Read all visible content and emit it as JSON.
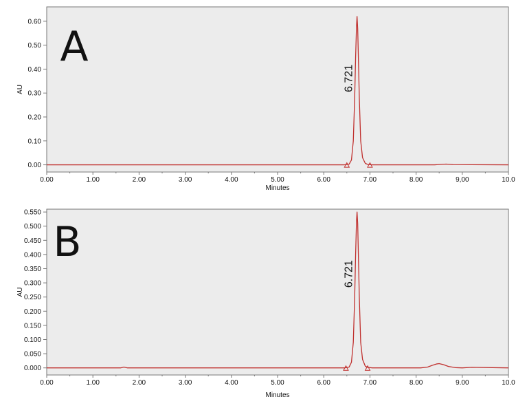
{
  "colors": {
    "trace": "#c0302e",
    "plot_background": "#ececec",
    "axis": "#777777",
    "text": "#111111"
  },
  "chart_data": [
    {
      "type": "line",
      "panel_letter": "A",
      "xlabel": "Minutes",
      "ylabel": "AU",
      "xlim": [
        0,
        10
      ],
      "ylim": [
        -0.03,
        0.66
      ],
      "x_ticks": [
        0,
        1,
        2,
        3,
        4,
        5,
        6,
        7,
        8,
        9,
        10
      ],
      "x_tick_labels": [
        "0.00",
        "1.00",
        "2.00",
        "3.00",
        "4.00",
        "5.00",
        "6.00",
        "7.00",
        "8.00",
        "9,00",
        "10.0"
      ],
      "y_ticks": [
        0,
        0.1,
        0.2,
        0.3,
        0.4,
        0.5,
        0.6
      ],
      "y_tick_labels": [
        "0.00",
        "0.10",
        "0.20",
        "0.30",
        "0.40",
        "0.50",
        "0.60"
      ],
      "grid": false,
      "series": [
        {
          "x": [
            0,
            6.45,
            6.55,
            6.6,
            6.64,
            6.67,
            6.69,
            6.71,
            6.721,
            6.735,
            6.75,
            6.77,
            6.8,
            6.84,
            6.9,
            6.95,
            7.05,
            8.4,
            8.55,
            8.65,
            8.8,
            10
          ],
          "y": [
            0,
            0,
            0.003,
            0.02,
            0.1,
            0.28,
            0.45,
            0.58,
            0.62,
            0.57,
            0.45,
            0.28,
            0.1,
            0.03,
            0.006,
            0.002,
            0,
            0,
            0.002,
            0.003,
            0.001,
            0
          ]
        }
      ],
      "annotations": [
        {
          "text": "6.721",
          "x": 6.721
        }
      ],
      "markers": [
        {
          "x": 6.5,
          "y": 0
        },
        {
          "x": 7.0,
          "y": 0
        }
      ]
    },
    {
      "type": "line",
      "panel_letter": "B",
      "xlabel": "Minutes",
      "ylabel": "AU",
      "xlim": [
        0,
        10
      ],
      "ylim": [
        -0.025,
        0.56
      ],
      "x_ticks": [
        0,
        1,
        2,
        3,
        4,
        5,
        6,
        7,
        8,
        9,
        10
      ],
      "x_tick_labels": [
        "0.00",
        "1.00",
        "2.00",
        "3.00",
        "4.00",
        "5.00",
        "6.00",
        "7.00",
        "8.00",
        "9.00",
        "10.0"
      ],
      "y_ticks": [
        0,
        0.05,
        0.1,
        0.15,
        0.2,
        0.25,
        0.3,
        0.35,
        0.4,
        0.45,
        0.5,
        0.55
      ],
      "y_tick_labels": [
        "0.000",
        "0.050",
        "0.100",
        "0.150",
        "0.200",
        "0.250",
        "0.300",
        "0.350",
        "0.400",
        "0.450",
        "0.500",
        "0.550"
      ],
      "grid": false,
      "series": [
        {
          "x": [
            0,
            1.6,
            1.67,
            1.75,
            6.45,
            6.55,
            6.6,
            6.64,
            6.67,
            6.69,
            6.71,
            6.721,
            6.735,
            6.75,
            6.77,
            6.8,
            6.84,
            6.9,
            6.95,
            7.05,
            8.1,
            8.25,
            8.35,
            8.45,
            8.5,
            8.6,
            8.7,
            8.85,
            9.0,
            9.2,
            10
          ],
          "y": [
            0,
            0,
            0.003,
            0,
            0,
            0.003,
            0.02,
            0.09,
            0.25,
            0.4,
            0.52,
            0.55,
            0.51,
            0.4,
            0.25,
            0.09,
            0.03,
            0.006,
            0.002,
            0,
            0,
            0.003,
            0.009,
            0.014,
            0.015,
            0.011,
            0.005,
            0.001,
            0,
            0.002,
            0
          ]
        }
      ],
      "annotations": [
        {
          "text": "6.721",
          "x": 6.721
        }
      ],
      "markers": [
        {
          "x": 6.48,
          "y": 0
        },
        {
          "x": 6.95,
          "y": 0
        }
      ]
    }
  ]
}
